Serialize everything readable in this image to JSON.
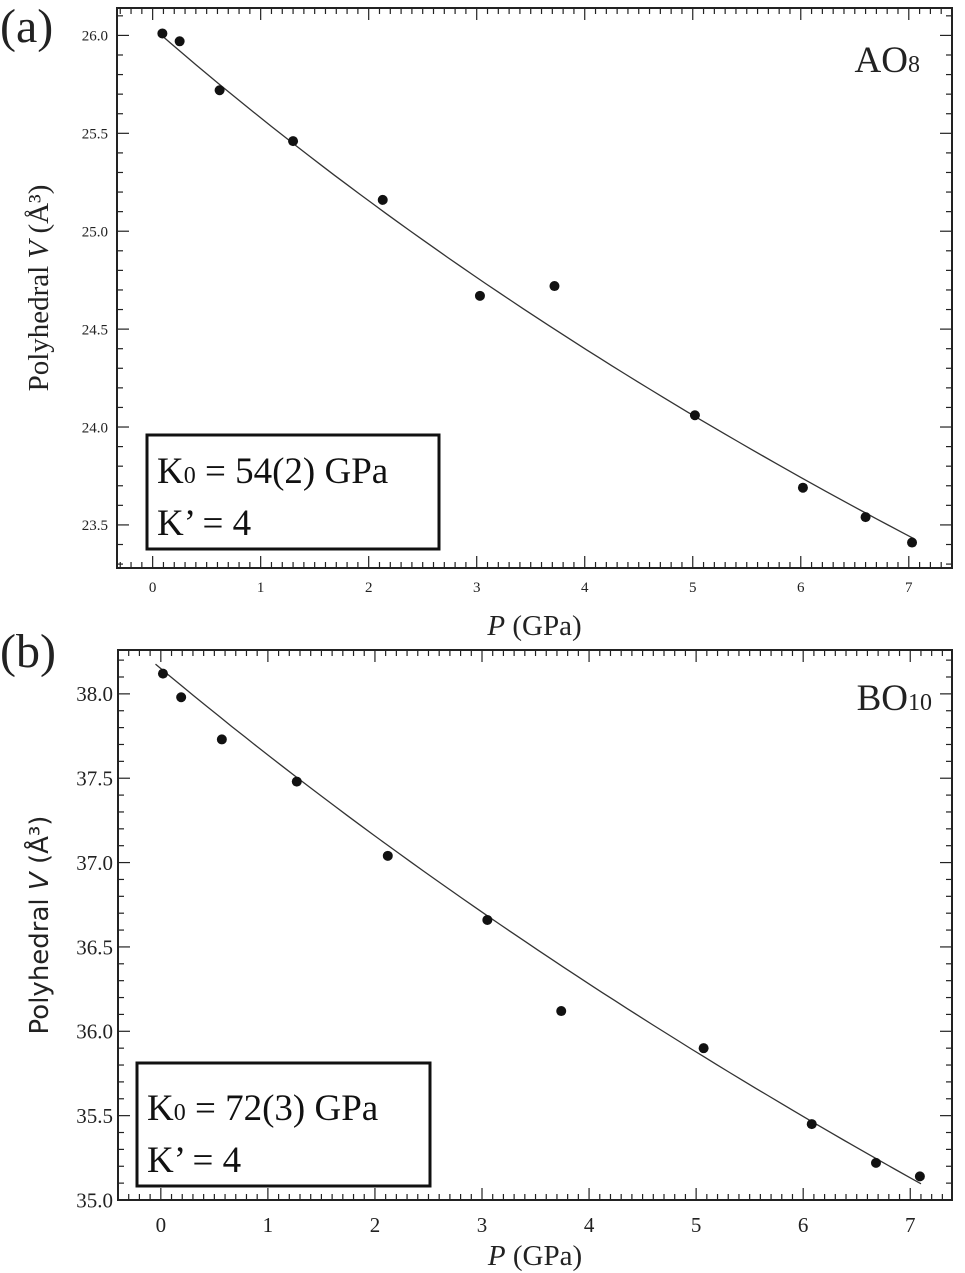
{
  "chart_data": [
    {
      "type": "scatter",
      "panel_label": "(a)",
      "annotation": "AO",
      "annotation_sub": "8",
      "xlabel_italic": "P",
      "xlabel_rest": " (GPa)",
      "ylabel_pre": "Polyhedral ",
      "ylabel_italic": "V",
      "ylabel_post": " (Å³)",
      "xlim": [
        -0.33,
        7.4
      ],
      "ylim": [
        23.28,
        26.14
      ],
      "xticks": [
        "0",
        "1",
        "2",
        "3",
        "4",
        "5",
        "6",
        "7"
      ],
      "yticks": [
        "23.5",
        "24.0",
        "24.5",
        "25.0",
        "25.5",
        "26.0"
      ],
      "grid": false,
      "series": [
        {
          "name": "data",
          "x": [
            0.09,
            0.25,
            0.62,
            1.3,
            2.13,
            3.03,
            3.72,
            5.02,
            6.02,
            6.6,
            7.03
          ],
          "y": [
            26.01,
            25.97,
            25.72,
            25.46,
            25.16,
            24.67,
            24.72,
            24.06,
            23.69,
            23.54,
            23.41
          ]
        }
      ],
      "fit": {
        "model": "Birch-Murnaghan",
        "V0": 26.04,
        "K0": 54,
        "Kp": 4,
        "p_range": [
          0.05,
          7.05
        ]
      },
      "box_line1_main": "K",
      "box_line1_sub": "0",
      "box_line1_rest": " = 54(2) GPa",
      "box_line2": "K’ = 4"
    },
    {
      "type": "scatter",
      "panel_label": "(b)",
      "annotation": "BO",
      "annotation_sub": "10",
      "xlabel_italic": "P",
      "xlabel_rest": " (GPa)",
      "ylabel_pre": "Polyhedral ",
      "ylabel_italic": "V",
      "ylabel_post": " (Å³)",
      "xlim": [
        -0.4,
        7.39
      ],
      "ylim": [
        35.0,
        38.26
      ],
      "xticks": [
        "0",
        "1",
        "2",
        "3",
        "4",
        "5",
        "6",
        "7"
      ],
      "yticks": [
        "35.0",
        "35.5",
        "36.0",
        "36.5",
        "37.0",
        "37.5",
        "38.0"
      ],
      "grid": false,
      "series": [
        {
          "name": "data",
          "x": [
            0.02,
            0.19,
            0.57,
            1.27,
            2.12,
            3.05,
            3.74,
            5.07,
            6.08,
            6.68,
            7.09
          ],
          "y": [
            38.12,
            37.98,
            37.73,
            37.48,
            37.04,
            36.66,
            36.12,
            35.9,
            35.45,
            35.22,
            35.14
          ]
        }
      ],
      "fit": {
        "model": "Birch-Murnaghan",
        "V0": 38.15,
        "K0": 72,
        "Kp": 4,
        "p_range": [
          -0.05,
          7.1
        ]
      },
      "box_line1_main": "K",
      "box_line1_sub": "0",
      "box_line1_rest": " = 72(3) GPa",
      "box_line2": "K’ = 4"
    }
  ]
}
